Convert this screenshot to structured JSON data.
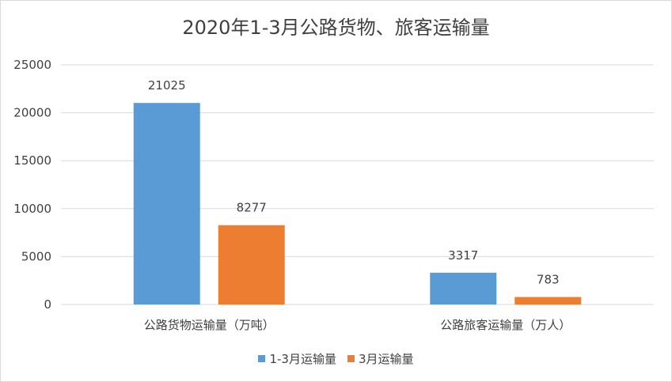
{
  "chart_data": {
    "type": "bar",
    "title": "2020年1-3月公路货物、旅客运输量",
    "categories": [
      "公路货物运输量（万吨）",
      "公路旅客运输量（万人）"
    ],
    "series": [
      {
        "name": "1-3月运输量",
        "values": [
          21025,
          3317
        ],
        "color": "#5b9bd5"
      },
      {
        "name": "3月运输量",
        "values": [
          8277,
          783
        ],
        "color": "#ed7d31"
      }
    ],
    "ylim": [
      0,
      25000
    ],
    "yticks": [
      0,
      5000,
      10000,
      15000,
      20000,
      25000
    ],
    "grid": true,
    "legend_position": "bottom",
    "xlabel": "",
    "ylabel": ""
  }
}
